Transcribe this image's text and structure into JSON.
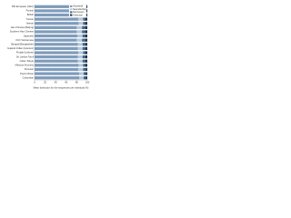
{
  "chart_data": {
    "type": "stacked-barh",
    "xlabel": "Mean distinction for the sequences per individual (%)",
    "categories": [
      "NW European (CEU)",
      "Finnish",
      "British",
      "Tuscan",
      "Iberian",
      "Han Chinese (Beijing)",
      "Southern Han Chinese",
      "Japanese",
      "Kinh Vietnamese",
      "Bengali (Bangladesh)",
      "Gujarati Indian (Houston)",
      "Punjabi (Lahore)",
      "Sri Lankan Tamil",
      "Indian Telugu",
      "Mexican Ancestry",
      "Peruvian",
      "Puerto Rican",
      "Colombian"
    ],
    "series": [
      {
        "name": "Ancestral",
        "color": "#7f9cbb",
        "values": [
          84,
          85,
          84,
          83,
          84,
          80,
          80,
          81,
          80,
          82,
          82,
          83,
          82,
          82,
          84,
          83,
          85,
          85
        ]
      },
      {
        "name": "Neanderthal",
        "color": "#b5c8dc",
        "values": [
          8,
          8,
          8,
          9,
          8,
          10,
          10,
          10,
          10,
          9,
          9,
          9,
          9,
          9,
          8,
          9,
          8,
          8
        ]
      },
      {
        "name": "Denisovan",
        "color": "#45658a",
        "values": [
          4,
          4,
          4,
          4,
          4,
          6,
          6,
          5,
          6,
          5,
          5,
          4,
          5,
          5,
          4,
          5,
          4,
          4
        ]
      },
      {
        "name": "Unknown",
        "color": "#1f3048",
        "values": [
          4,
          3,
          4,
          4,
          4,
          4,
          4,
          4,
          4,
          4,
          4,
          4,
          4,
          4,
          4,
          3,
          3,
          3
        ]
      }
    ],
    "xlim": [
      0,
      100
    ],
    "xticks": [
      0,
      20,
      40,
      60,
      80,
      100
    ],
    "legend": "top-right"
  }
}
